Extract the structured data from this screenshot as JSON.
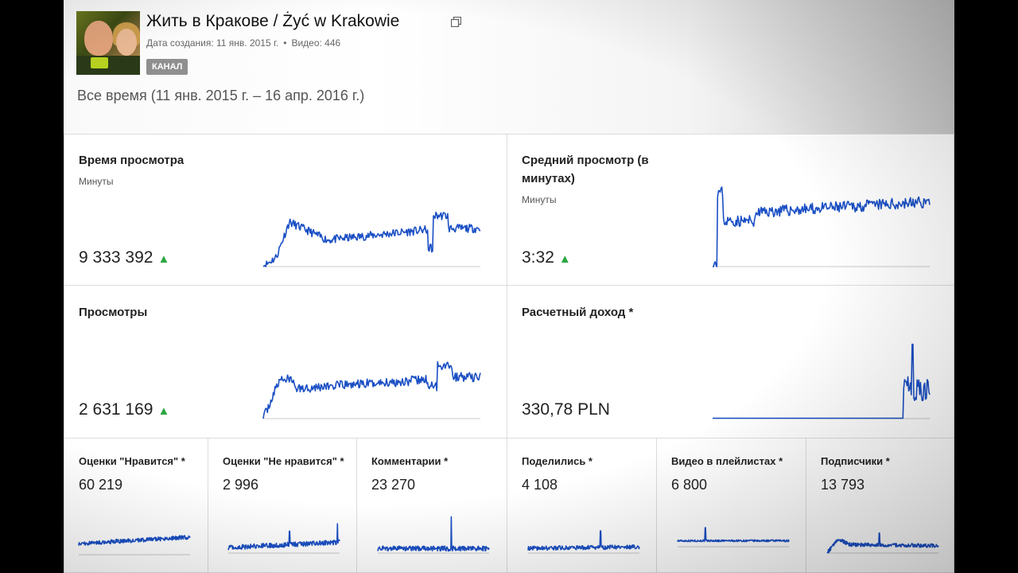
{
  "channel": {
    "title": "Жить в Кракове / Żyć w Krakowie",
    "created_label": "Дата создания: 11 янв. 2015 г.",
    "separator": "•",
    "videos_label": "Видео: 446",
    "badge": "КАНАЛ",
    "period": "Все время (11 янв. 2015 г. – 16 апр. 2016 г.)"
  },
  "colors": {
    "line": "#1a4fc4",
    "axis": "#c8c8c8",
    "up_arrow": "#2ba640",
    "badge": "#8f8f8f"
  },
  "icons": {
    "external": "external-link-icon",
    "up": "triangle-up-icon"
  },
  "big_cards": [
    {
      "label": "Время просмотра",
      "sub": "Минуты",
      "value": "9 333 392",
      "arrow": "▲"
    },
    {
      "label": "Средний просмотр (в минутах)",
      "sub": "Минуты",
      "value": "3:32",
      "arrow": "▲"
    },
    {
      "label": "Просмотры",
      "sub": "",
      "value": "2 631 169",
      "arrow": "▲"
    },
    {
      "label": "Расчетный доход *",
      "sub": "",
      "value": "330,78 PLN",
      "arrow": ""
    }
  ],
  "small_cards": [
    {
      "label": "Оценки \"Нравится\" *",
      "value": "60 219"
    },
    {
      "label": "Оценки \"Не нравится\" *",
      "value": "2 996"
    },
    {
      "label": "Комментарии *",
      "value": "23 270"
    },
    {
      "label": "Поделились *",
      "value": "4 108"
    },
    {
      "label": "Видео в плейлистах *",
      "value": "6 800"
    },
    {
      "label": "Подписчики *",
      "value": "13 793"
    }
  ]
}
